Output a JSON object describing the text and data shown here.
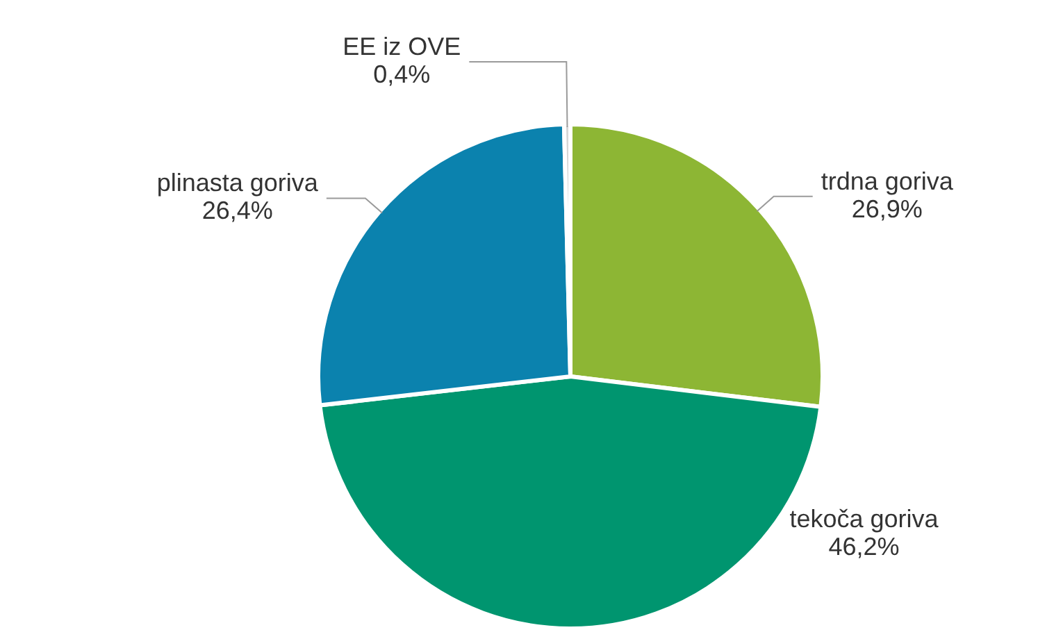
{
  "chart_data": {
    "type": "pie",
    "categories": [
      "trdna goriva",
      "tekoča goriva",
      "plinasta goriva",
      "EE iz OVE"
    ],
    "values": [
      26.9,
      46.2,
      26.4,
      0.4
    ],
    "value_labels": [
      "26,9%",
      "46,2%",
      "26,4%",
      "0,4%"
    ],
    "colors": [
      "#8db634",
      "#00956f",
      "#0b82ae",
      "#d6d6d6"
    ],
    "legend": false
  }
}
